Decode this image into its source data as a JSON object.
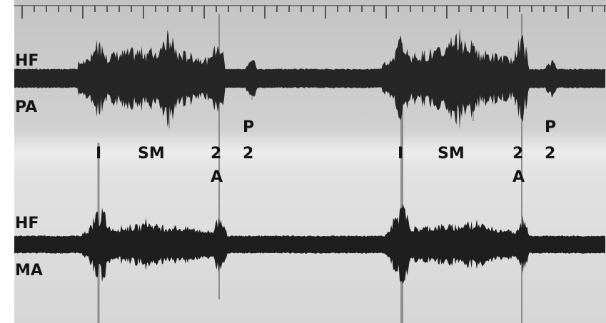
{
  "recording": {
    "channels": [
      {
        "filter": "HF",
        "site": "PA"
      },
      {
        "filter": "HF",
        "site": "MA"
      }
    ],
    "cycles": [
      {
        "first_sound": "I",
        "murmur": "SM",
        "a2": [
          "2",
          "A"
        ],
        "p2": [
          "P",
          "2"
        ]
      },
      {
        "first_sound": "I",
        "murmur": "SM",
        "a2": [
          "2",
          "A"
        ],
        "p2": [
          "P",
          "2"
        ]
      }
    ]
  },
  "colors": {
    "background_top": "#d0d0d0",
    "background_band": "#e6e6e6",
    "background_bottom": "#d8d8d8",
    "trace": "#262626",
    "label": "#141414"
  }
}
